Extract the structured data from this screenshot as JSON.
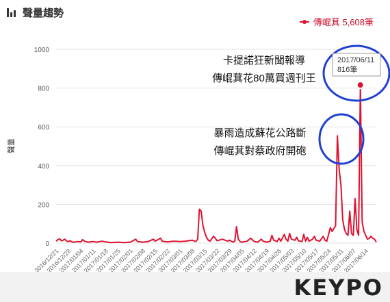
{
  "header": {
    "title": "聲量趨勢",
    "icon": "bar-chart-icon"
  },
  "legend": {
    "label": "傳崐萁 5,608筆",
    "color": "#e0102f"
  },
  "annotations": [
    {
      "lines": [
        "卡提諾狂新聞報導",
        "傳崐萁花80萬買週刊王"
      ]
    },
    {
      "lines": [
        "暴雨造成蘇花公路斷",
        "傳崐萁對蔡政府開砲"
      ]
    }
  ],
  "tooltip": {
    "date": "2017/06/11",
    "value": "816筆"
  },
  "logo": {
    "text": "KEYPO"
  },
  "chart_data": {
    "type": "line",
    "ylabel": "聲量",
    "ylim": [
      0,
      1000
    ],
    "yticks": [
      0,
      200,
      400,
      600,
      800,
      1000
    ],
    "grid": true,
    "start_date": "2016/12/21",
    "end_date": "2017/06/20",
    "xtick_labels": [
      "2016/12/21",
      "2016/12/28",
      "2017/01/04",
      "2017/01/11",
      "2017/01/18",
      "2017/01/25",
      "2017/02/01",
      "2017/02/08",
      "2017/02/15",
      "2017/02/22",
      "2017/03/01",
      "2017/03/08",
      "2017/03/15",
      "2017/03/22",
      "2017/03/29",
      "2017/04/05",
      "2017/04/12",
      "2017/04/19",
      "2017/04/26",
      "2017/05/03",
      "2017/05/10",
      "2017/05/17",
      "2017/05/24",
      "2017/05/31",
      "2017/06/07",
      "2017/06/14"
    ],
    "series": [
      {
        "name": "傳崐萁",
        "color": "#e0102f",
        "points": [
          [
            "2016/12/21",
            10
          ],
          [
            "2016/12/22",
            18
          ],
          [
            "2016/12/23",
            22
          ],
          [
            "2016/12/24",
            12
          ],
          [
            "2016/12/25",
            15
          ],
          [
            "2016/12/26",
            20
          ],
          [
            "2016/12/27",
            10
          ],
          [
            "2016/12/28",
            8
          ],
          [
            "2016/12/29",
            12
          ],
          [
            "2016/12/30",
            6
          ],
          [
            "2016/12/31",
            5
          ],
          [
            "2017/01/02",
            8
          ],
          [
            "2017/01/04",
            6
          ],
          [
            "2017/01/05",
            18
          ],
          [
            "2017/01/06",
            10
          ],
          [
            "2017/01/08",
            5
          ],
          [
            "2017/01/11",
            8
          ],
          [
            "2017/01/13",
            5
          ],
          [
            "2017/01/16",
            10
          ],
          [
            "2017/01/18",
            6
          ],
          [
            "2017/01/21",
            3
          ],
          [
            "2017/01/25",
            5
          ],
          [
            "2017/01/28",
            3
          ],
          [
            "2017/02/01",
            5
          ],
          [
            "2017/02/04",
            20
          ],
          [
            "2017/02/05",
            8
          ],
          [
            "2017/02/08",
            5
          ],
          [
            "2017/02/11",
            8
          ],
          [
            "2017/02/14",
            20
          ],
          [
            "2017/02/15",
            10
          ],
          [
            "2017/02/18",
            25
          ],
          [
            "2017/02/19",
            10
          ],
          [
            "2017/02/22",
            6
          ],
          [
            "2017/02/25",
            10
          ],
          [
            "2017/03/01",
            8
          ],
          [
            "2017/03/04",
            10
          ],
          [
            "2017/03/08",
            15
          ],
          [
            "2017/03/10",
            8
          ],
          [
            "2017/03/11",
            20
          ],
          [
            "2017/03/12",
            175
          ],
          [
            "2017/03/13",
            165
          ],
          [
            "2017/03/14",
            90
          ],
          [
            "2017/03/15",
            55
          ],
          [
            "2017/03/16",
            30
          ],
          [
            "2017/03/17",
            15
          ],
          [
            "2017/03/18",
            10
          ],
          [
            "2017/03/20",
            35
          ],
          [
            "2017/03/21",
            25
          ],
          [
            "2017/03/22",
            12
          ],
          [
            "2017/03/25",
            20
          ],
          [
            "2017/03/28",
            10
          ],
          [
            "2017/03/29",
            15
          ],
          [
            "2017/03/31",
            5
          ],
          [
            "2017/04/01",
            10
          ],
          [
            "2017/04/02",
            85
          ],
          [
            "2017/04/03",
            20
          ],
          [
            "2017/04/04",
            8
          ],
          [
            "2017/04/05",
            5
          ],
          [
            "2017/04/08",
            10
          ],
          [
            "2017/04/10",
            25
          ],
          [
            "2017/04/12",
            8
          ],
          [
            "2017/04/14",
            5
          ],
          [
            "2017/04/16",
            20
          ],
          [
            "2017/04/17",
            10
          ],
          [
            "2017/04/19",
            5
          ],
          [
            "2017/04/21",
            10
          ],
          [
            "2017/04/22",
            40
          ],
          [
            "2017/04/23",
            15
          ],
          [
            "2017/04/25",
            8
          ],
          [
            "2017/04/26",
            25
          ],
          [
            "2017/04/27",
            10
          ],
          [
            "2017/04/29",
            45
          ],
          [
            "2017/04/30",
            20
          ],
          [
            "2017/05/01",
            10
          ],
          [
            "2017/05/02",
            50
          ],
          [
            "2017/05/03",
            20
          ],
          [
            "2017/05/05",
            15
          ],
          [
            "2017/05/06",
            30
          ],
          [
            "2017/05/07",
            12
          ],
          [
            "2017/05/09",
            8
          ],
          [
            "2017/05/10",
            45
          ],
          [
            "2017/05/11",
            10
          ],
          [
            "2017/05/12",
            30
          ],
          [
            "2017/05/13",
            10
          ],
          [
            "2017/05/15",
            20
          ],
          [
            "2017/05/16",
            35
          ],
          [
            "2017/05/17",
            15
          ],
          [
            "2017/05/19",
            10
          ],
          [
            "2017/05/21",
            35
          ],
          [
            "2017/05/22",
            15
          ],
          [
            "2017/05/23",
            10
          ],
          [
            "2017/05/25",
            80
          ],
          [
            "2017/05/26",
            60
          ],
          [
            "2017/05/27",
            75
          ],
          [
            "2017/05/28",
            90
          ],
          [
            "2017/05/29",
            554
          ],
          [
            "2017/05/30",
            380
          ],
          [
            "2017/05/31",
            300
          ],
          [
            "2017/06/01",
            120
          ],
          [
            "2017/06/02",
            70
          ],
          [
            "2017/06/03",
            50
          ],
          [
            "2017/06/04",
            40
          ],
          [
            "2017/06/05",
            165
          ],
          [
            "2017/06/06",
            50
          ],
          [
            "2017/06/07",
            40
          ],
          [
            "2017/06/08",
            230
          ],
          [
            "2017/06/09",
            70
          ],
          [
            "2017/06/10",
            40
          ],
          [
            "2017/06/11",
            816
          ],
          [
            "2017/06/12",
            110
          ],
          [
            "2017/06/13",
            60
          ],
          [
            "2017/06/14",
            40
          ],
          [
            "2017/06/15",
            20
          ],
          [
            "2017/06/16",
            25
          ],
          [
            "2017/06/17",
            35
          ],
          [
            "2017/06/18",
            25
          ],
          [
            "2017/06/19",
            20
          ],
          [
            "2017/06/20",
            5
          ]
        ]
      }
    ]
  }
}
